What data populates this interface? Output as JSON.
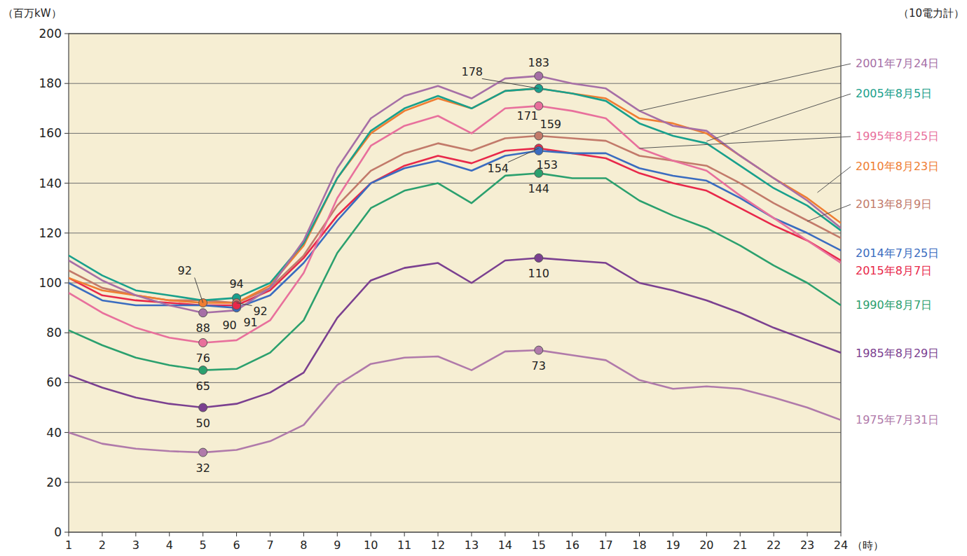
{
  "chart_data": {
    "type": "line",
    "subtitle": "（10電力計）",
    "y_label": "（百万kW）",
    "x_label": "（時）",
    "x": [
      1,
      2,
      3,
      4,
      5,
      6,
      7,
      8,
      9,
      10,
      11,
      12,
      13,
      14,
      15,
      16,
      17,
      18,
      19,
      20,
      21,
      22,
      23,
      24
    ],
    "xlim": [
      1,
      24
    ],
    "xticks": [
      1,
      2,
      3,
      4,
      5,
      6,
      7,
      8,
      9,
      10,
      11,
      12,
      13,
      14,
      15,
      16,
      17,
      18,
      19,
      20,
      21,
      22,
      23,
      24
    ],
    "ylim": [
      0,
      200
    ],
    "yticks": [
      0,
      20,
      40,
      60,
      80,
      100,
      120,
      140,
      160,
      180,
      200
    ],
    "grid": true,
    "series": [
      {
        "name": "2001年7月24日",
        "color": "#a66fa6",
        "values": [
          109,
          101,
          95,
          91,
          88,
          89,
          98,
          117,
          146,
          166,
          175,
          179,
          174,
          182,
          183,
          180,
          178,
          169,
          163,
          161,
          151,
          142,
          133,
          122
        ]
      },
      {
        "name": "2005年8月5日",
        "color": "#19a08c",
        "values": [
          111,
          103,
          97,
          95,
          93,
          94,
          100,
          116,
          142,
          161,
          170,
          175,
          170,
          177,
          178,
          176,
          173,
          164,
          159,
          156,
          147,
          138,
          131,
          121
        ]
      },
      {
        "name": "1995年8月25日",
        "color": "#e8709c",
        "values": [
          96,
          88,
          82,
          78,
          76,
          77,
          85,
          104,
          134,
          155,
          163,
          167,
          160,
          170,
          171,
          169,
          166,
          154,
          149,
          145,
          135,
          126,
          117,
          108
        ]
      },
      {
        "name": "2010年8月23日",
        "color": "#ef7d32",
        "values": [
          102,
          97,
          95,
          93,
          92,
          92,
          99,
          115,
          142,
          160,
          169,
          174,
          170,
          177,
          178,
          176,
          174,
          166,
          164,
          160,
          151,
          142,
          134,
          124
        ]
      },
      {
        "name": "2013年8月9日",
        "color": "#c27a6a",
        "values": [
          105,
          98,
          95,
          93,
          93,
          92,
          98,
          111,
          131,
          145,
          152,
          156,
          153,
          158,
          159,
          158,
          157,
          151,
          149,
          147,
          140,
          132,
          125,
          118
        ]
      },
      {
        "name": "2014年7月25日",
        "color": "#3a6cc0",
        "values": [
          100,
          93,
          91,
          91,
          91,
          90,
          95,
          108,
          125,
          140,
          146,
          149,
          145,
          151,
          153,
          152,
          152,
          146,
          143,
          141,
          134,
          126,
          120,
          113
        ]
      },
      {
        "name": "2015年8月7日",
        "color": "#e8284a",
        "values": [
          102,
          95,
          93,
          92,
          91,
          91,
          97,
          110,
          127,
          140,
          147,
          151,
          148,
          153,
          154,
          152,
          150,
          144,
          140,
          137,
          130,
          123,
          117,
          109
        ]
      },
      {
        "name": "1990年8月7日",
        "color": "#2ba06e",
        "values": [
          81,
          75,
          70,
          67,
          65,
          65.5,
          72,
          85,
          112,
          130,
          137,
          140,
          132,
          143,
          144,
          142,
          142,
          133,
          127,
          122,
          115,
          107,
          100,
          91
        ]
      },
      {
        "name": "1985年8月29日",
        "color": "#7b4090",
        "values": [
          63,
          58,
          54,
          51.5,
          50,
          51.5,
          56,
          64,
          86,
          101,
          106,
          108,
          100,
          109,
          110,
          109,
          108,
          100,
          97,
          93,
          88,
          82,
          77,
          72
        ]
      },
      {
        "name": "1975年7月31日",
        "color": "#b07aaa",
        "values": [
          40,
          35.5,
          33.5,
          32.5,
          32,
          33,
          36.5,
          43,
          59,
          67.5,
          70,
          70.5,
          65,
          72.5,
          73,
          71,
          69,
          61,
          57.5,
          58.5,
          57.5,
          54,
          50,
          45
        ]
      }
    ],
    "annotations": [
      {
        "series": 0,
        "x": 15,
        "text": "183"
      },
      {
        "series": 1,
        "x": 15,
        "text": "178"
      },
      {
        "series": 2,
        "x": 15,
        "text": "171"
      },
      {
        "series": 4,
        "x": 15,
        "text": "159"
      },
      {
        "series": 6,
        "x": 15,
        "text": "154"
      },
      {
        "series": 5,
        "x": 15,
        "text": "153"
      },
      {
        "series": 7,
        "x": 15,
        "text": "144"
      },
      {
        "series": 8,
        "x": 15,
        "text": "110"
      },
      {
        "series": 9,
        "x": 15,
        "text": "73"
      },
      {
        "series": 3,
        "x": 5,
        "text": "92"
      },
      {
        "series": 1,
        "x": 6,
        "text": "94"
      },
      {
        "series": 4,
        "x": 6,
        "text": "92"
      },
      {
        "series": 0,
        "x": 5,
        "text": "88"
      },
      {
        "series": 5,
        "x": 6,
        "text": "90"
      },
      {
        "series": 6,
        "x": 6,
        "text": "91"
      },
      {
        "series": 2,
        "x": 5,
        "text": "76"
      },
      {
        "series": 7,
        "x": 5,
        "text": "65"
      },
      {
        "series": 8,
        "x": 5,
        "text": "50"
      },
      {
        "series": 9,
        "x": 5,
        "text": "32"
      }
    ]
  }
}
